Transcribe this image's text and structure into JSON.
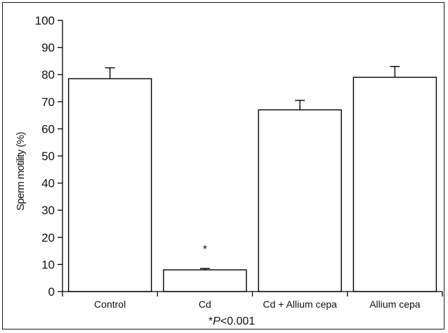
{
  "chart_data": {
    "type": "bar",
    "categories": [
      "Control",
      "Cd",
      "Cd + Allium cepa",
      "Allium cepa"
    ],
    "values": [
      78.5,
      8,
      67,
      79
    ],
    "errors": [
      4,
      0.5,
      3.5,
      4
    ],
    "annotations": [
      "",
      "*",
      "",
      ""
    ],
    "ylabel": "Sperm motility (%)",
    "ylim": [
      0,
      100
    ],
    "yticks": [
      0,
      10,
      20,
      30,
      40,
      50,
      60,
      70,
      80,
      90,
      100
    ],
    "note_prefix": "*",
    "note_var": "P",
    "note_suffix": "<0.001",
    "grid": false,
    "bar_color": "#ffffff",
    "edge_color": "#000000"
  }
}
